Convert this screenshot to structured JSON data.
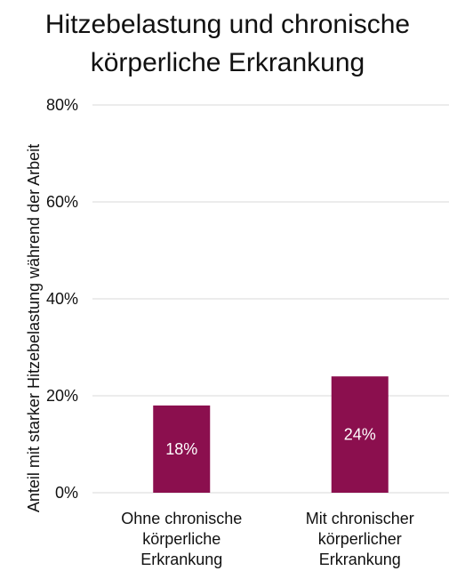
{
  "chart_data": {
    "type": "bar",
    "title_lines": [
      "Hitzebelastung und chronische",
      "körperliche Erkrankung"
    ],
    "ylabel": "Anteil mit starker Hitzebelastung während der Arbeit",
    "xlabel": "",
    "categories": [
      [
        "Ohne chronische",
        "körperliche",
        "Erkrankung"
      ],
      [
        "Mit chronischer",
        "körperlicher",
        "Erkrankung"
      ]
    ],
    "values": [
      18,
      24
    ],
    "data_labels": [
      "18%",
      "24%"
    ],
    "ylim": [
      0,
      80
    ],
    "yticks": [
      0,
      20,
      40,
      60,
      80
    ],
    "ytick_labels": [
      "0%",
      "20%",
      "40%",
      "60%",
      "80%"
    ],
    "grid": true,
    "bar_color": "#8b0f4e",
    "grid_color": "#d9d9d9"
  }
}
